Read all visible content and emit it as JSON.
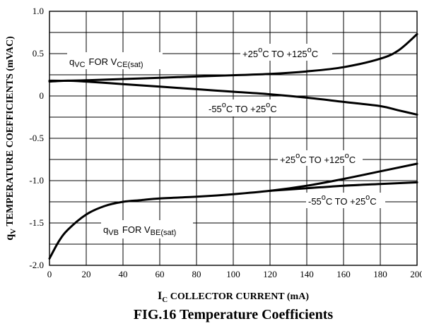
{
  "chart_data": {
    "type": "line",
    "title": "",
    "xlabel": {
      "prefix": "I",
      "subscript": "C",
      "rest": " COLLECTOR CURRENT (mA)"
    },
    "ylabel": {
      "prefix": "q",
      "subscript": "V",
      "rest": " TEMPERATURE COEFFICIENTS (mVAC)"
    },
    "xlim": [
      0,
      200
    ],
    "ylim": [
      -2.0,
      1.0
    ],
    "x_ticks": [
      "0",
      "20",
      "40",
      "60",
      "80",
      "100",
      "120",
      "140",
      "160",
      "180",
      "200"
    ],
    "y_ticks": [
      "1.0",
      "0.5",
      "0",
      "-0.5",
      "-1.0",
      "-1.5",
      "-2.0"
    ],
    "grid": true,
    "series": [
      {
        "x": [
          0,
          10,
          20,
          40,
          60,
          80,
          100,
          120,
          140,
          160,
          180,
          190,
          200
        ],
        "y": [
          0.18,
          0.18,
          0.185,
          0.2,
          0.215,
          0.23,
          0.245,
          0.26,
          0.29,
          0.34,
          0.44,
          0.54,
          0.73
        ]
      },
      {
        "x": [
          0,
          10,
          20,
          40,
          60,
          80,
          100,
          120,
          140,
          160,
          180,
          190,
          200
        ],
        "y": [
          0.17,
          0.18,
          0.17,
          0.14,
          0.11,
          0.08,
          0.05,
          0.02,
          -0.02,
          -0.07,
          -0.12,
          -0.17,
          -0.22
        ]
      },
      {
        "x": [
          0,
          5,
          10,
          20,
          30,
          40,
          50,
          60,
          80,
          100,
          120,
          140,
          160,
          180,
          200
        ],
        "y": [
          -1.92,
          -1.72,
          -1.58,
          -1.4,
          -1.3,
          -1.25,
          -1.23,
          -1.21,
          -1.19,
          -1.16,
          -1.12,
          -1.06,
          -0.98,
          -0.89,
          -0.8
        ]
      },
      {
        "x": [
          120,
          140,
          160,
          180,
          200
        ],
        "y": [
          -1.12,
          -1.09,
          -1.06,
          -1.04,
          -1.02
        ]
      }
    ],
    "annotations": {
      "qvc": {
        "q": "q",
        "qsub": "VC",
        "for": "FOR V",
        "vsub": "CE(sat)"
      },
      "qvb": {
        "q": "q",
        "qsub": "VB",
        "for": "FOR V",
        "vsub": "BE(sat)"
      },
      "upper_hot": {
        "a": "+25",
        "deg1": "o",
        "b": "C TO +125",
        "deg2": "o",
        "c": "C"
      },
      "upper_cold": {
        "a": "-55",
        "deg1": "o",
        "b": "C TO +25",
        "deg2": "o",
        "c": "C"
      },
      "lower_hot": {
        "a": "+25",
        "deg1": "o",
        "b": "C TO +125",
        "deg2": "o",
        "c": "C"
      },
      "lower_cold": {
        "a": "-55",
        "deg1": "o",
        "b": "C TO +25",
        "deg2": "o",
        "c": "C"
      }
    },
    "caption": "FIG.16 Temperature Coefficients"
  }
}
